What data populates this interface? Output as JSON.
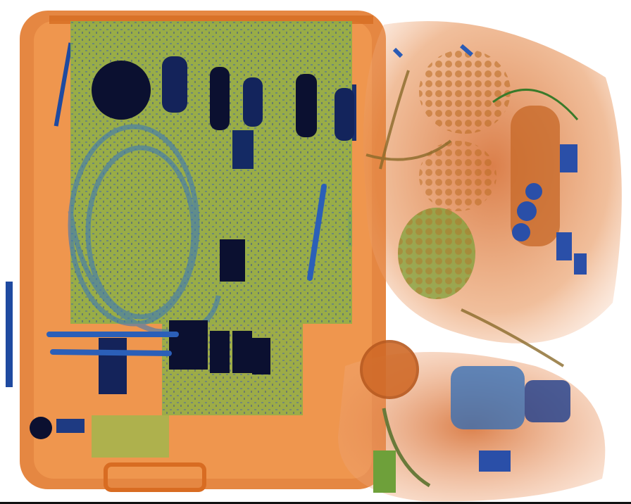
{
  "image": {
    "kind": "x-ray baggage scan",
    "palette": {
      "background": "#ffffff",
      "organic_orange": "#e0702a",
      "organic_dark": "#c2551a",
      "mixed_green": "#7fa03a",
      "mixed_olive": "#5f8a2a",
      "metal_blue": "#2b5fb8",
      "metal_dark": "#0b1030",
      "case_rim": "#d9782a"
    }
  }
}
